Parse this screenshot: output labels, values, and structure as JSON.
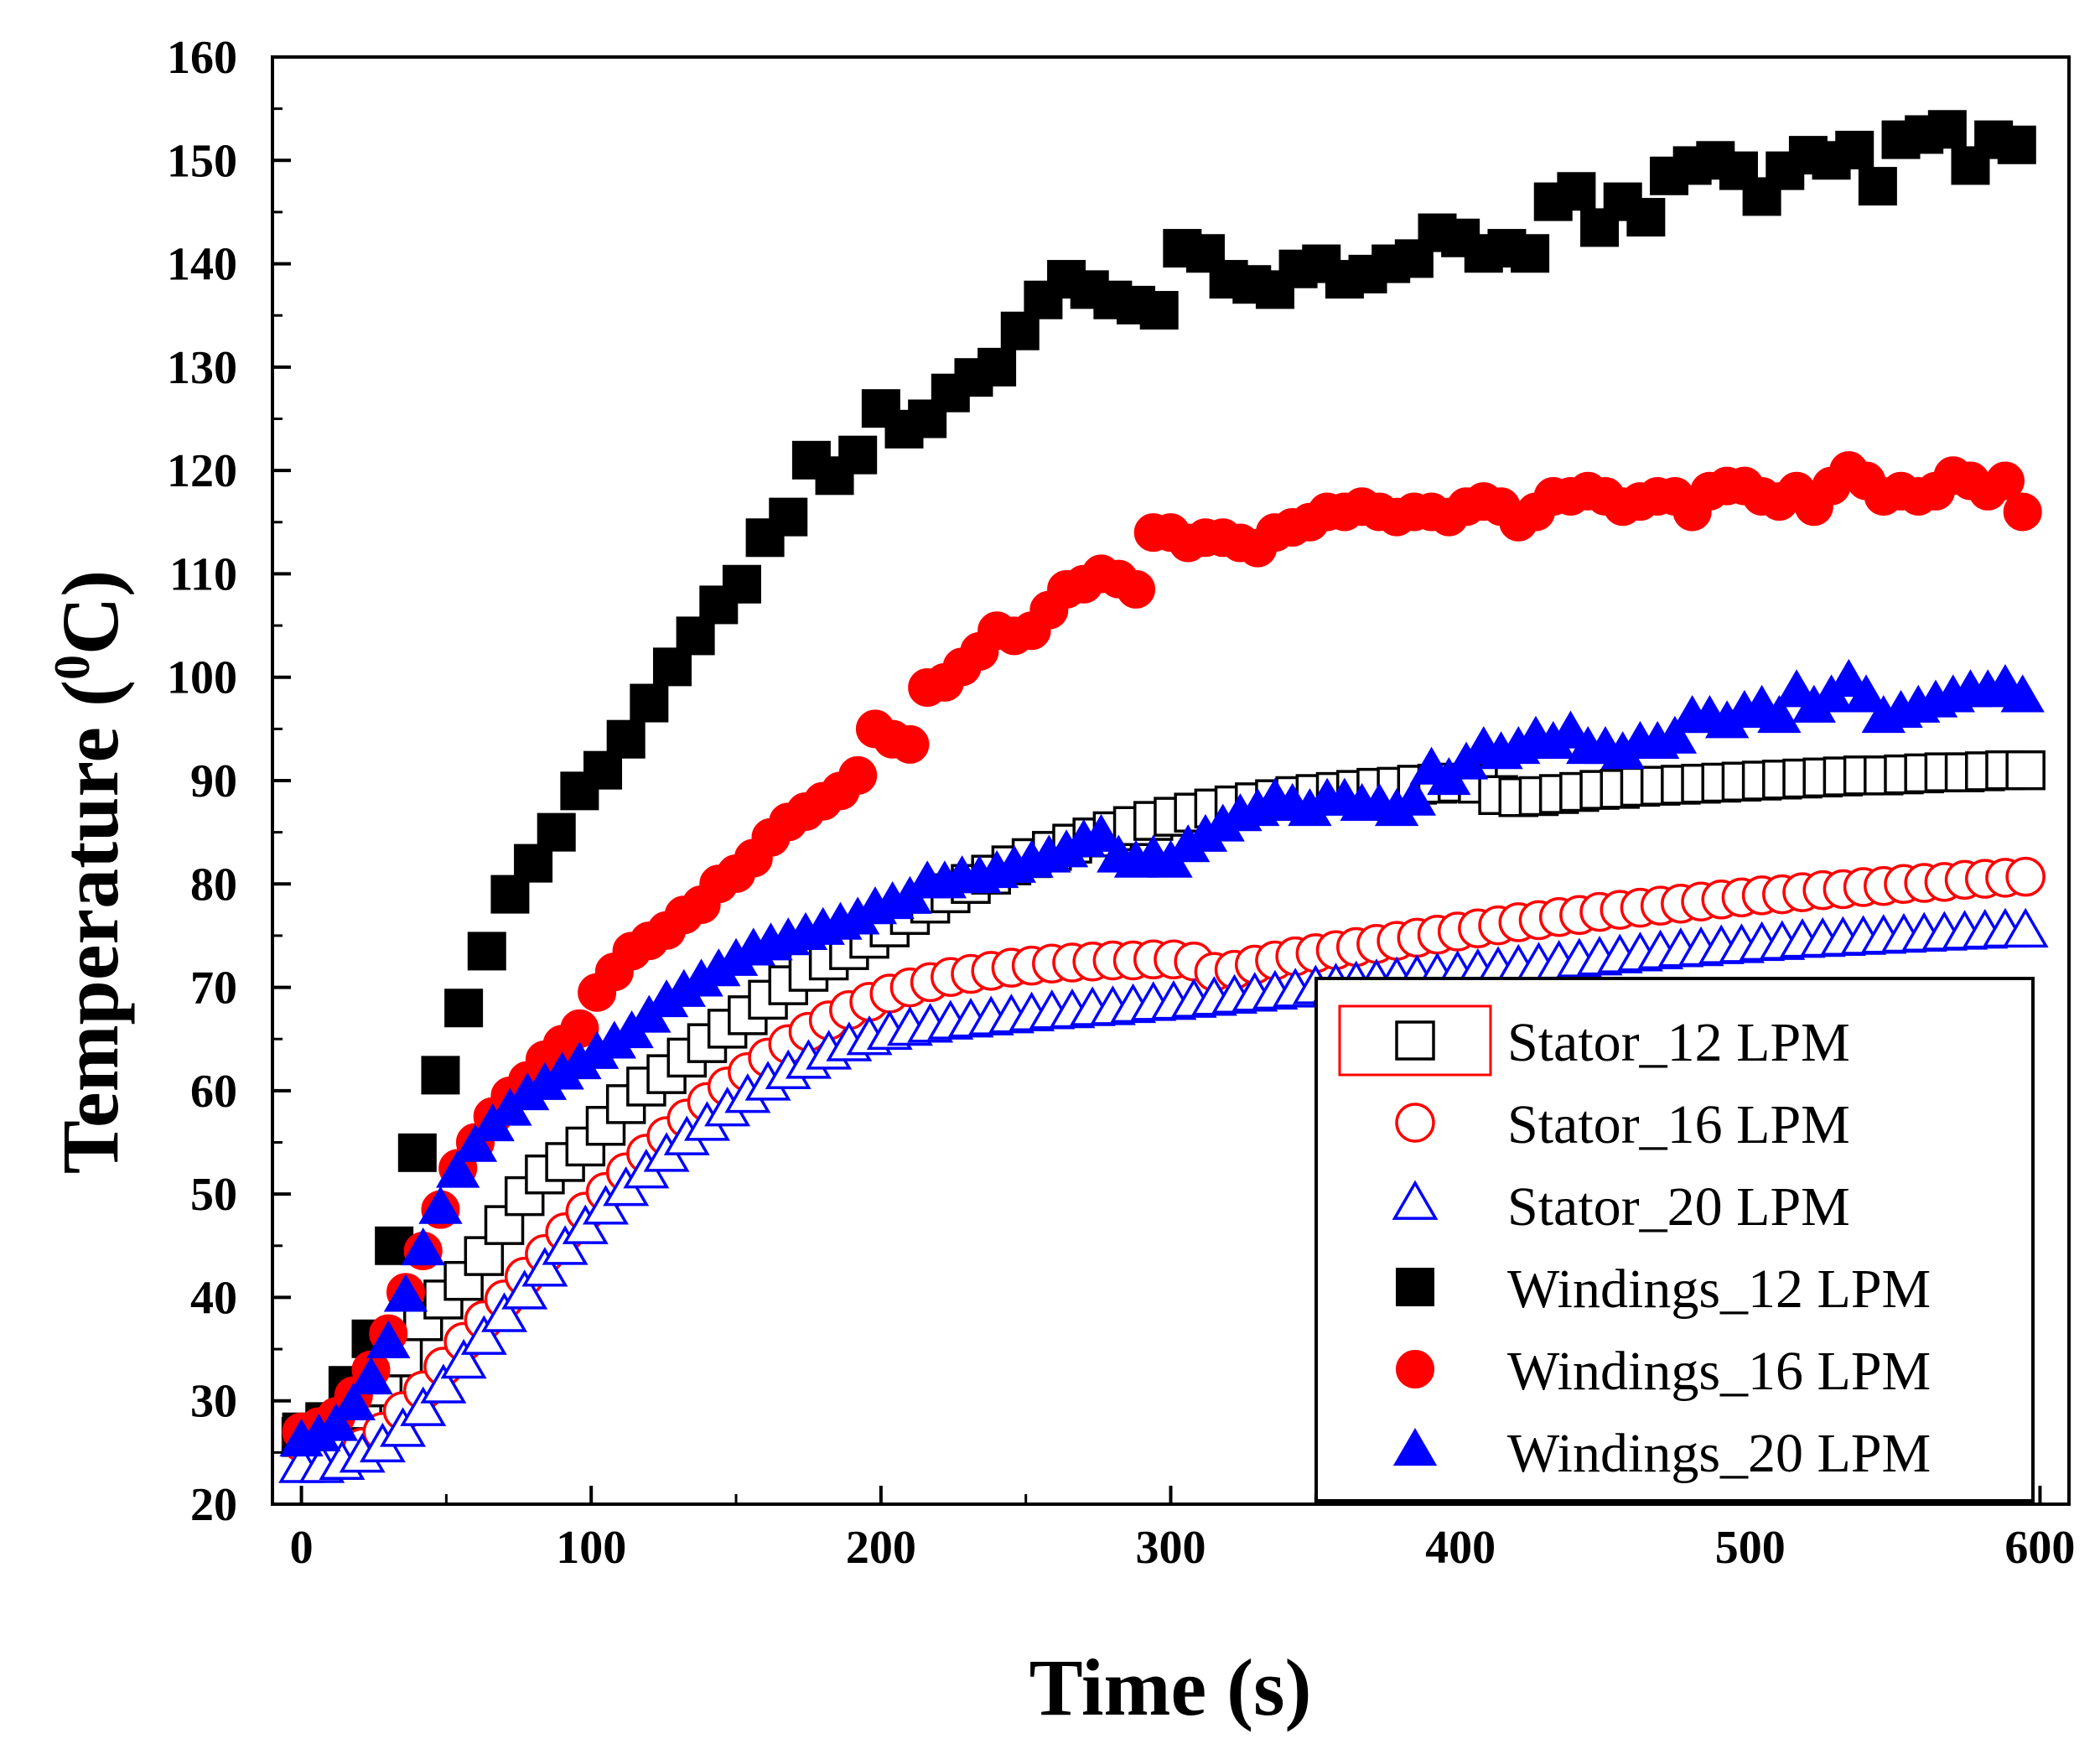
{
  "chart_data": {
    "type": "scatter",
    "title": "",
    "xlabel": "Time (s)",
    "ylabel": "Temperature (°C)",
    "ylabel_parts": {
      "main": "Temperature (",
      "sup": "0",
      "unit": "C)"
    },
    "xlim": [
      -10,
      610
    ],
    "ylim": [
      20,
      160
    ],
    "xticks": [
      0,
      100,
      200,
      300,
      400,
      500,
      600
    ],
    "yticks": [
      20,
      30,
      40,
      50,
      60,
      70,
      80,
      90,
      100,
      110,
      120,
      130,
      140,
      150,
      160
    ],
    "xtick_labels": [
      "0",
      "100",
      "200",
      "300",
      "400",
      "500",
      "600"
    ],
    "ytick_labels": [
      "20",
      "30",
      "40",
      "50",
      "60",
      "70",
      "80",
      "90",
      "100",
      "110",
      "120",
      "130",
      "140",
      "150",
      "160"
    ],
    "legend_position": "bottom-right",
    "series": [
      {
        "name": "Stator_12 LPM",
        "marker": "square",
        "filled": false,
        "color": "#000000",
        "x": [
          0,
          7,
          14,
          21,
          28,
          35,
          42,
          49,
          56,
          63,
          70,
          77,
          84,
          91,
          98,
          105,
          112,
          119,
          126,
          133,
          140,
          147,
          154,
          161,
          168,
          175,
          182,
          189,
          196,
          203,
          210,
          217,
          224,
          231,
          238,
          245,
          252,
          259,
          266,
          273,
          280,
          287,
          294,
          301,
          308,
          315,
          322,
          329,
          336,
          343,
          350,
          357,
          364,
          371,
          378,
          385,
          392,
          399,
          406,
          413,
          420,
          427,
          434,
          441,
          448,
          455,
          462,
          469,
          476,
          483,
          490,
          497,
          504,
          511,
          518,
          525,
          532,
          539,
          546,
          553,
          560,
          567,
          574,
          581,
          588,
          595
        ],
        "y": [
          26.5,
          26.9,
          27.8,
          29.1,
          31.3,
          34.2,
          37.7,
          39.8,
          41.6,
          44.0,
          47.0,
          49.8,
          51.9,
          53.1,
          54.6,
          56.6,
          58.7,
          60.4,
          61.6,
          63.2,
          64.6,
          66.0,
          67.3,
          68.8,
          70.2,
          71.5,
          72.6,
          73.6,
          74.7,
          75.8,
          77.0,
          78.1,
          79.1,
          80.0,
          80.9,
          81.8,
          82.5,
          83.2,
          83.9,
          84.5,
          85.1,
          85.6,
          86.1,
          86.5,
          86.9,
          87.3,
          87.6,
          87.9,
          88.2,
          88.5,
          88.7,
          88.9,
          89.1,
          89.3,
          89.4,
          89.6,
          89.7,
          89.8,
          89.7,
          88.6,
          88.4,
          88.5,
          88.7,
          88.9,
          89.1,
          89.2,
          89.4,
          89.5,
          89.6,
          89.7,
          89.8,
          89.9,
          90.0,
          90.1,
          90.2,
          90.3,
          90.4,
          90.5,
          90.5,
          90.6,
          90.7,
          90.8,
          90.8,
          90.9,
          91.0,
          91.0
        ]
      },
      {
        "name": "Stator_16 LPM",
        "marker": "circle",
        "filled": false,
        "color": "#ff0000",
        "x": [
          0,
          7,
          14,
          21,
          28,
          35,
          42,
          49,
          56,
          63,
          70,
          77,
          84,
          91,
          98,
          105,
          112,
          119,
          126,
          133,
          140,
          147,
          154,
          161,
          168,
          175,
          182,
          189,
          196,
          203,
          210,
          217,
          224,
          231,
          238,
          245,
          252,
          259,
          266,
          273,
          280,
          287,
          294,
          301,
          308,
          315,
          322,
          329,
          336,
          343,
          350,
          357,
          364,
          371,
          378,
          385,
          392,
          399,
          406,
          413,
          420,
          427,
          434,
          441,
          448,
          455,
          462,
          469,
          476,
          483,
          490,
          497,
          504,
          511,
          518,
          525,
          532,
          539,
          546,
          553,
          560,
          567,
          574,
          581,
          588,
          595
        ],
        "y": [
          26.0,
          25.0,
          25.0,
          25.5,
          27.0,
          29.0,
          31.0,
          33.3,
          35.7,
          37.8,
          39.8,
          42.0,
          44.2,
          46.3,
          48.3,
          50.2,
          52.1,
          53.9,
          55.6,
          57.3,
          58.9,
          60.4,
          61.8,
          63.2,
          64.5,
          65.7,
          66.8,
          67.8,
          68.6,
          69.4,
          70.0,
          70.5,
          71.0,
          71.3,
          71.6,
          71.9,
          72.1,
          72.3,
          72.4,
          72.5,
          72.6,
          72.6,
          72.7,
          72.7,
          72.5,
          71.5,
          71.7,
          72.2,
          72.6,
          73.0,
          73.3,
          73.6,
          73.9,
          74.2,
          74.5,
          74.8,
          75.1,
          75.4,
          75.7,
          76.0,
          76.3,
          76.5,
          76.8,
          77.0,
          77.3,
          77.5,
          77.7,
          77.9,
          78.1,
          78.3,
          78.5,
          78.7,
          78.9,
          79.0,
          79.2,
          79.4,
          79.5,
          79.7,
          79.8,
          80.0,
          80.1,
          80.2,
          80.4,
          80.5,
          80.6,
          80.7
        ]
      },
      {
        "name": "Stator_20 LPM",
        "marker": "triangle",
        "filled": false,
        "color": "#0000ff",
        "x": [
          0,
          7,
          14,
          21,
          28,
          35,
          42,
          49,
          56,
          63,
          70,
          77,
          84,
          91,
          98,
          105,
          112,
          119,
          126,
          133,
          140,
          147,
          154,
          161,
          168,
          175,
          182,
          189,
          196,
          203,
          210,
          217,
          224,
          231,
          238,
          245,
          252,
          259,
          266,
          273,
          280,
          287,
          294,
          301,
          308,
          315,
          322,
          329,
          336,
          343,
          350,
          357,
          364,
          371,
          378,
          385,
          392,
          399,
          406,
          413,
          420,
          427,
          434,
          441,
          448,
          455,
          462,
          469,
          476,
          483,
          490,
          497,
          504,
          511,
          518,
          525,
          532,
          539,
          546,
          553,
          560,
          567,
          574,
          581,
          588,
          595
        ],
        "y": [
          23.5,
          23.5,
          23.8,
          24.5,
          25.5,
          27.0,
          29.0,
          31.2,
          33.6,
          35.9,
          38.1,
          40.3,
          42.5,
          44.6,
          46.6,
          48.5,
          50.3,
          52.0,
          53.6,
          55.2,
          56.6,
          58.0,
          59.3,
          60.5,
          61.6,
          62.6,
          63.5,
          64.3,
          64.9,
          65.4,
          65.8,
          66.1,
          66.4,
          66.6,
          66.8,
          67.0,
          67.2,
          67.4,
          67.5,
          67.7,
          67.8,
          68.0,
          68.2,
          68.3,
          68.5,
          68.7,
          68.9,
          69.1,
          69.3,
          69.5,
          69.8,
          70.0,
          70.2,
          70.4,
          70.6,
          70.8,
          71.0,
          71.2,
          71.4,
          71.6,
          71.8,
          72.0,
          72.2,
          72.4,
          72.6,
          72.8,
          73.0,
          73.2,
          73.4,
          73.5,
          73.7,
          73.8,
          74.0,
          74.1,
          74.3,
          74.4,
          74.5,
          74.6,
          74.7,
          74.8,
          74.9,
          75.0,
          75.1,
          75.2,
          75.3,
          75.3
        ]
      },
      {
        "name": "Windings_12 LPM",
        "marker": "square",
        "filled": true,
        "color": "#000000",
        "x": [
          0,
          8,
          16,
          24,
          32,
          40,
          48,
          56,
          64,
          72,
          80,
          88,
          96,
          104,
          112,
          120,
          128,
          136,
          144,
          152,
          160,
          168,
          176,
          184,
          192,
          200,
          208,
          216,
          224,
          232,
          240,
          248,
          256,
          264,
          272,
          280,
          288,
          296,
          304,
          312,
          320,
          328,
          336,
          344,
          352,
          360,
          368,
          376,
          384,
          392,
          400,
          408,
          416,
          424,
          432,
          440,
          448,
          456,
          464,
          472,
          480,
          488,
          496,
          504,
          512,
          520,
          528,
          536,
          544,
          552,
          560,
          568,
          576,
          584,
          592
        ],
        "y": [
          27.0,
          28.0,
          31.5,
          36.0,
          45.0,
          54.0,
          61.5,
          68.0,
          73.5,
          79.0,
          82.0,
          85.0,
          89.0,
          91.0,
          94.0,
          97.5,
          101.0,
          104.0,
          107.0,
          109.0,
          113.5,
          115.5,
          121.0,
          119.5,
          121.5,
          126.0,
          124.0,
          125.0,
          127.5,
          129.0,
          130.0,
          133.5,
          136.5,
          138.5,
          137.5,
          136.5,
          136.0,
          135.5,
          141.5,
          141.0,
          138.5,
          138.0,
          137.5,
          139.5,
          140.0,
          138.5,
          139.0,
          140.0,
          140.5,
          143.0,
          142.5,
          141.0,
          141.5,
          141.0,
          146.0,
          147.0,
          143.5,
          146.0,
          144.5,
          148.5,
          149.5,
          150.0,
          149.0,
          146.5,
          149.0,
          150.5,
          150.0,
          151.0,
          147.5,
          152.0,
          152.5,
          153.0,
          149.5,
          152.0,
          151.5
        ]
      },
      {
        "name": "Windings_16 LPM",
        "marker": "circle",
        "filled": true,
        "color": "#ff0000",
        "x": [
          0,
          6,
          12,
          18,
          24,
          30,
          36,
          42,
          48,
          54,
          60,
          66,
          72,
          78,
          84,
          90,
          96,
          102,
          108,
          114,
          120,
          126,
          132,
          138,
          144,
          150,
          156,
          162,
          168,
          174,
          180,
          186,
          192,
          198,
          204,
          210,
          216,
          222,
          228,
          234,
          240,
          246,
          252,
          258,
          264,
          270,
          276,
          282,
          288,
          294,
          300,
          306,
          312,
          318,
          324,
          330,
          336,
          342,
          348,
          354,
          360,
          366,
          372,
          378,
          384,
          390,
          396,
          402,
          408,
          414,
          420,
          426,
          432,
          438,
          444,
          450,
          456,
          462,
          468,
          474,
          480,
          486,
          492,
          498,
          504,
          510,
          516,
          522,
          528,
          534,
          540,
          546,
          552,
          558,
          564,
          570,
          576,
          582,
          588,
          594
        ],
        "y": [
          27.0,
          27.5,
          28.5,
          30.5,
          33.0,
          36.5,
          40.5,
          44.5,
          48.5,
          52.5,
          55.0,
          57.5,
          59.5,
          61.0,
          63.0,
          64.5,
          66.0,
          69.5,
          71.5,
          73.5,
          74.5,
          75.5,
          77.0,
          78.0,
          80.0,
          81.0,
          82.5,
          84.5,
          86.0,
          87.0,
          88.0,
          89.0,
          90.5,
          95.0,
          94.0,
          93.5,
          99.0,
          99.5,
          101.0,
          102.5,
          104.5,
          104.0,
          104.5,
          106.5,
          108.5,
          109.0,
          110.0,
          109.5,
          108.5,
          114.0,
          114.0,
          113.0,
          113.5,
          113.5,
          113.0,
          112.5,
          114.0,
          114.5,
          115.0,
          116.0,
          116.0,
          116.5,
          116.0,
          115.5,
          116.0,
          116.0,
          115.5,
          116.5,
          117.0,
          116.5,
          115.0,
          116.0,
          117.5,
          117.5,
          118.0,
          117.5,
          116.5,
          117.0,
          117.5,
          117.5,
          116.0,
          118.0,
          118.5,
          118.5,
          117.5,
          117.0,
          118.0,
          116.5,
          118.5,
          120.0,
          119.0,
          117.5,
          118.0,
          117.5,
          118.0,
          119.5,
          119.0,
          118.0,
          119.0,
          116.0
        ]
      },
      {
        "name": "Windings_20 LPM",
        "marker": "triangle",
        "filled": true,
        "color": "#0000ff",
        "x": [
          0,
          6,
          12,
          18,
          24,
          30,
          36,
          42,
          48,
          54,
          60,
          66,
          72,
          78,
          84,
          90,
          96,
          102,
          108,
          114,
          120,
          126,
          132,
          138,
          144,
          150,
          156,
          162,
          168,
          174,
          180,
          186,
          192,
          198,
          204,
          210,
          216,
          222,
          228,
          234,
          240,
          246,
          252,
          258,
          264,
          270,
          276,
          282,
          288,
          294,
          300,
          306,
          312,
          318,
          324,
          330,
          336,
          342,
          348,
          354,
          360,
          366,
          372,
          378,
          384,
          390,
          396,
          402,
          408,
          414,
          420,
          426,
          432,
          438,
          444,
          450,
          456,
          462,
          468,
          474,
          480,
          486,
          492,
          498,
          504,
          510,
          516,
          522,
          528,
          534,
          540,
          546,
          552,
          558,
          564,
          570,
          576,
          582,
          588,
          594
        ],
        "y": [
          26.0,
          26.5,
          27.5,
          29.5,
          32.0,
          35.5,
          40.0,
          44.5,
          48.5,
          52.0,
          54.5,
          56.5,
          58.0,
          59.5,
          60.5,
          61.5,
          62.5,
          63.5,
          64.5,
          65.5,
          67.0,
          68.5,
          69.5,
          70.5,
          71.5,
          72.5,
          73.5,
          74.0,
          74.5,
          75.0,
          75.5,
          76.0,
          76.5,
          77.5,
          78.0,
          78.5,
          80.0,
          80.0,
          80.5,
          80.5,
          81.0,
          81.5,
          82.0,
          82.5,
          83.0,
          84.0,
          84.5,
          82.5,
          82.0,
          82.5,
          82.0,
          83.5,
          84.5,
          85.5,
          86.5,
          87.0,
          88.0,
          87.5,
          87.0,
          88.0,
          88.0,
          87.5,
          87.5,
          87.0,
          88.0,
          91.0,
          90.0,
          91.5,
          93.0,
          92.5,
          93.0,
          94.0,
          93.5,
          94.5,
          93.0,
          93.0,
          92.5,
          93.5,
          93.5,
          94.0,
          96.0,
          96.0,
          95.5,
          96.5,
          97.0,
          96.0,
          98.5,
          97.0,
          98.0,
          99.5,
          98.0,
          96.0,
          96.5,
          97.0,
          97.5,
          98.0,
          98.5,
          98.5,
          99.0,
          98.0
        ]
      }
    ]
  }
}
